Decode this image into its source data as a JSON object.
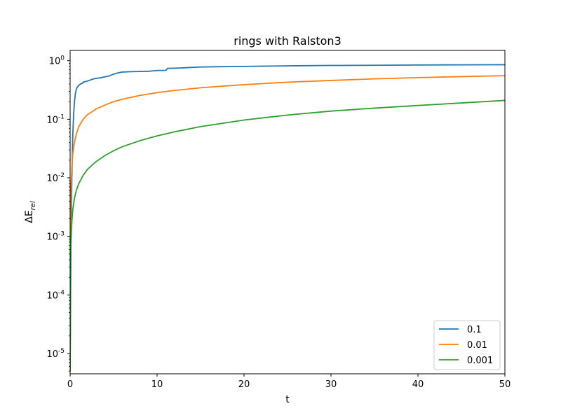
{
  "chart_data": {
    "type": "line",
    "title": "rings with Ralston3",
    "xlabel": "t",
    "ylabel_base": "ΔE",
    "ylabel_sub": "rel",
    "y_scale": "log",
    "xlim": [
      0,
      50
    ],
    "ylim": [
      4.5e-06,
      1.5
    ],
    "grid": false,
    "legend_position": "lower right",
    "x_ticks": [
      {
        "value": 0,
        "label": "0"
      },
      {
        "value": 10,
        "label": "10"
      },
      {
        "value": 20,
        "label": "20"
      },
      {
        "value": 30,
        "label": "30"
      },
      {
        "value": 40,
        "label": "40"
      },
      {
        "value": 50,
        "label": "50"
      }
    ],
    "y_ticks": [
      {
        "exp": 0,
        "label": "0"
      },
      {
        "exp": -1,
        "label": "-1"
      },
      {
        "exp": -2,
        "label": "-2"
      },
      {
        "exp": -3,
        "label": "-3"
      },
      {
        "exp": -4,
        "label": "-4"
      },
      {
        "exp": -5,
        "label": "-5"
      }
    ],
    "y_tick_base": "10",
    "series": [
      {
        "name": "0.1",
        "color": "#1f77b4",
        "x": [
          0.0,
          0.1,
          0.2,
          0.3,
          0.4,
          0.5,
          0.6,
          0.7,
          0.8,
          1.0,
          1.2,
          1.4,
          1.5,
          2.0,
          2.2,
          2.5,
          3.0,
          3.5,
          4.0,
          4.5,
          5.0,
          5.5,
          6.0,
          7.0,
          8.0,
          9.0,
          9.5,
          10.0,
          11.0,
          11.2,
          12.0,
          13.0,
          14.0,
          15.0,
          17.0,
          20.0,
          23.0,
          26.0,
          30.0,
          35.0,
          40.0,
          45.0,
          50.0
        ],
        "y": [
          5e-06,
          0.001,
          0.01,
          0.05,
          0.12,
          0.2,
          0.27,
          0.32,
          0.35,
          0.38,
          0.4,
          0.41,
          0.43,
          0.45,
          0.46,
          0.48,
          0.5,
          0.51,
          0.53,
          0.55,
          0.59,
          0.62,
          0.64,
          0.65,
          0.655,
          0.66,
          0.67,
          0.68,
          0.685,
          0.74,
          0.745,
          0.755,
          0.77,
          0.78,
          0.79,
          0.8,
          0.81,
          0.82,
          0.83,
          0.835,
          0.845,
          0.85,
          0.855
        ]
      },
      {
        "name": "0.01",
        "color": "#ff7f0e",
        "x": [
          0.0,
          0.05,
          0.1,
          0.2,
          0.3,
          0.5,
          0.7,
          1.0,
          1.5,
          2.0,
          3.0,
          4.0,
          5.0,
          6.0,
          8.0,
          10.0,
          12.0,
          15.0,
          20.0,
          25.0,
          30.0,
          35.0,
          40.0,
          45.0,
          50.0
        ],
        "y": [
          5e-06,
          0.002,
          0.007,
          0.015,
          0.025,
          0.04,
          0.055,
          0.075,
          0.1,
          0.12,
          0.15,
          0.175,
          0.2,
          0.22,
          0.255,
          0.285,
          0.31,
          0.345,
          0.39,
          0.43,
          0.46,
          0.49,
          0.515,
          0.535,
          0.555
        ]
      },
      {
        "name": "0.001",
        "color": "#2ca02c",
        "x": [
          0.0,
          0.05,
          0.1,
          0.2,
          0.3,
          0.5,
          0.7,
          1.0,
          1.5,
          2.0,
          3.0,
          4.0,
          5.0,
          6.0,
          8.0,
          10.0,
          12.0,
          15.0,
          20.0,
          25.0,
          30.0,
          35.0,
          40.0,
          45.0,
          50.0
        ],
        "y": [
          5e-06,
          0.0003,
          0.0008,
          0.0018,
          0.0028,
          0.0045,
          0.006,
          0.008,
          0.011,
          0.014,
          0.019,
          0.024,
          0.029,
          0.034,
          0.043,
          0.052,
          0.061,
          0.075,
          0.097,
          0.118,
          0.138,
          0.155,
          0.172,
          0.19,
          0.21
        ]
      }
    ]
  }
}
